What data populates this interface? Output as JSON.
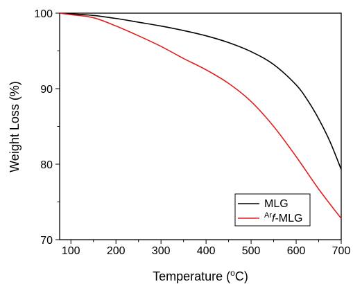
{
  "chart_data": {
    "type": "line",
    "xlabel": "Temperature (",
    "xlabel_sup": "o",
    "xlabel_suffix": "C)",
    "ylabel": "Weight Loss (%)",
    "xlim": [
      75,
      700
    ],
    "ylim": [
      70,
      100
    ],
    "x_ticks": [
      100,
      200,
      300,
      400,
      500,
      600,
      700
    ],
    "y_ticks": [
      70,
      80,
      90,
      100
    ],
    "grid": false,
    "legend_position": "bottom-right",
    "series": [
      {
        "name": "MLG",
        "color": "#000000",
        "x": [
          75,
          100,
          150,
          200,
          250,
          300,
          350,
          400,
          450,
          500,
          550,
          600,
          625,
          650,
          675,
          700
        ],
        "y": [
          100,
          99.9,
          99.7,
          99.3,
          98.8,
          98.3,
          97.7,
          97.0,
          96.1,
          94.9,
          93.2,
          90.5,
          88.5,
          86.0,
          83.0,
          79.3
        ]
      },
      {
        "name": "f-MLG",
        "name_prefix_sup": "Ar",
        "name_italic": "f",
        "name_suffix": "-MLG",
        "color": "#e02020",
        "x": [
          75,
          100,
          150,
          200,
          250,
          300,
          350,
          400,
          450,
          500,
          550,
          600,
          650,
          700
        ],
        "y": [
          100,
          99.8,
          99.4,
          98.3,
          97.0,
          95.6,
          94.0,
          92.5,
          90.7,
          88.3,
          85.0,
          81.0,
          76.7,
          72.8
        ]
      }
    ]
  }
}
